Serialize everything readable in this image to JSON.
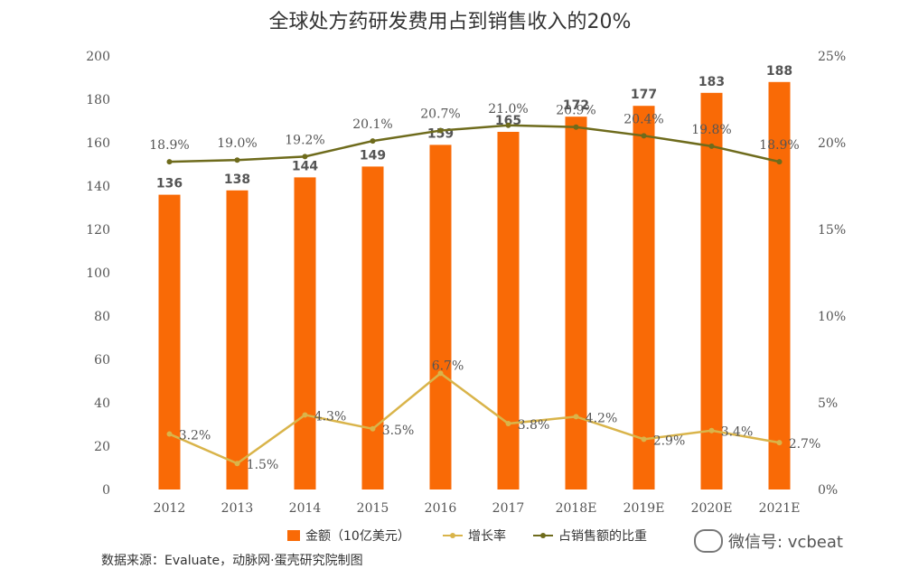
{
  "chart_data": {
    "type": "bar",
    "title": "全球处方药研发费用占到销售收入的20%",
    "categories": [
      "2012",
      "2013",
      "2014",
      "2015",
      "2016",
      "2017",
      "2018E",
      "2019E",
      "2020E",
      "2021E"
    ],
    "series": [
      {
        "name": "金额（10亿美元）",
        "type": "bar",
        "axis": "left",
        "values": [
          136,
          138,
          144,
          149,
          159,
          165,
          172,
          177,
          183,
          188
        ],
        "labels": [
          "136",
          "138",
          "144",
          "149",
          "159",
          "165",
          "172",
          "177",
          "183",
          "188"
        ],
        "color": "#F96A06"
      },
      {
        "name": "增长率",
        "type": "line",
        "axis": "right",
        "values": [
          3.2,
          1.5,
          4.3,
          3.5,
          6.7,
          3.8,
          4.2,
          2.9,
          3.4,
          2.7
        ],
        "labels": [
          "3.2%",
          "1.5%",
          "4.3%",
          "3.5%",
          "6.7%",
          "3.8%",
          "4.2%",
          "2.9%",
          "3.4%",
          "2.7%"
        ],
        "color": "#D9B44A"
      },
      {
        "name": "占销售额的比重",
        "type": "line",
        "axis": "right",
        "values": [
          18.9,
          19.0,
          19.2,
          20.1,
          20.7,
          21.0,
          20.9,
          20.4,
          19.8,
          18.9
        ],
        "labels": [
          "18.9%",
          "19.0%",
          "19.2%",
          "20.1%",
          "20.7%",
          "21.0%",
          "20.9%",
          "20.4%",
          "19.8%",
          "18.9%"
        ],
        "color": "#6E6B1C"
      }
    ],
    "yleft": {
      "min": 0,
      "max": 200,
      "step": 20,
      "ticks": [
        "0",
        "20",
        "40",
        "60",
        "80",
        "100",
        "120",
        "140",
        "160",
        "180",
        "200"
      ]
    },
    "yright": {
      "min": 0,
      "max": 25,
      "step": 5,
      "ticks": [
        "0%",
        "5%",
        "10%",
        "15%",
        "20%",
        "25%"
      ]
    },
    "legend_position": "bottom",
    "grid": false
  },
  "source": "数据来源：Evaluate，动脉网·蛋壳研究院制图",
  "watermark": "微信号: vcbeat"
}
